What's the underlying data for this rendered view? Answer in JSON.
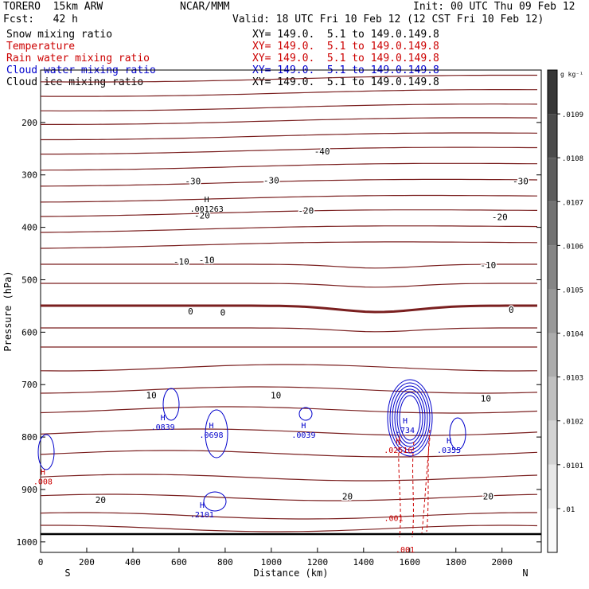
{
  "header": {
    "model": "TORERO  15km ARW",
    "center": "NCAR/MMM",
    "init": "Init: 00 UTC Thu 09 Feb 12",
    "fcst": "Fcst:   42 h",
    "valid": "Valid: 18 UTC Fri 10 Feb 12 (12 CST Fri 10 Feb 12)"
  },
  "legend": [
    {
      "name": "Snow mixing ratio",
      "xy": "XY= 149.0.  5.1 to 149.0.149.8",
      "color": "#000000"
    },
    {
      "name": "Temperature",
      "xy": "XY= 149.0.  5.1 to 149.0.149.8",
      "color": "#cc0000"
    },
    {
      "name": "Rain water mixing ratio",
      "xy": "XY= 149.0.  5.1 to 149.0.149.8",
      "color": "#cc0000"
    },
    {
      "name": "Cloud water mixing ratio",
      "xy": "XY= 149.0.  5.1 to 149.0.149.8",
      "color": "#0000cc"
    },
    {
      "name": "Cloud ice mixing ratio",
      "xy": "XY= 149.0.  5.1 to 149.0.149.8",
      "color": "#000000"
    }
  ],
  "chart_data": {
    "type": "cross-section contour",
    "ylabel": "Pressure (hPa)",
    "xlabel": "Distance (km)",
    "x_ticks": [
      0,
      200,
      400,
      600,
      800,
      1000,
      1200,
      1400,
      1600,
      1800,
      2000
    ],
    "xlim": [
      0,
      2170
    ],
    "y_ticks": [
      200,
      300,
      400,
      500,
      600,
      700,
      800,
      900,
      1000
    ],
    "ylim": [
      100,
      1020
    ],
    "left_end_label": "S",
    "right_end_label": "N",
    "colorbar": {
      "unit": "g kg⁻¹",
      "ticks": [
        ".0109",
        ".0108",
        ".0107",
        ".0106",
        ".0105",
        ".0104",
        ".0103",
        ".0102",
        ".0101",
        ".01"
      ]
    },
    "temperature_labels": [
      {
        "text": "-40",
        "x": 1220,
        "p": 255
      },
      {
        "text": "-30",
        "x": 660,
        "p": 312
      },
      {
        "text": "-30",
        "x": 1000,
        "p": 310
      },
      {
        "text": "-30",
        "x": 2080,
        "p": 312
      },
      {
        "text": "-20",
        "x": 700,
        "p": 377
      },
      {
        "text": "-20",
        "x": 1150,
        "p": 368
      },
      {
        "text": "-20",
        "x": 1990,
        "p": 380
      },
      {
        "text": "-10",
        "x": 610,
        "p": 465
      },
      {
        "text": "-10",
        "x": 720,
        "p": 462
      },
      {
        "text": "-10",
        "x": 1940,
        "p": 472
      },
      {
        "text": "0",
        "x": 650,
        "p": 560
      },
      {
        "text": "0",
        "x": 790,
        "p": 562
      },
      {
        "text": "0",
        "x": 2040,
        "p": 557
      },
      {
        "text": "10",
        "x": 480,
        "p": 720
      },
      {
        "text": "10",
        "x": 1020,
        "p": 720
      },
      {
        "text": "10",
        "x": 1930,
        "p": 726
      },
      {
        "text": "20",
        "x": 260,
        "p": 920
      },
      {
        "text": "20",
        "x": 1330,
        "p": 913
      },
      {
        "text": "20",
        "x": 1940,
        "p": 913
      }
    ],
    "extrema_labels": [
      {
        "h": "H",
        "value": ".001263",
        "x": 720,
        "p": 352,
        "color": "#000000"
      },
      {
        "h": "H",
        "value": ".0839",
        "x": 530,
        "p": 768,
        "color": "#0000cc"
      },
      {
        "h": "H",
        "value": ".0698",
        "x": 740,
        "p": 783,
        "color": "#0000cc"
      },
      {
        "h": "H",
        "value": ".0039",
        "x": 1140,
        "p": 783,
        "color": "#0000cc"
      },
      {
        "h": "H",
        "value": ".734",
        "x": 1580,
        "p": 774,
        "color": "#0000cc"
      },
      {
        "h": "H",
        "value": ".0355",
        "x": 1770,
        "p": 812,
        "color": "#0000cc"
      },
      {
        "h": "H",
        "value": ".2101",
        "x": 700,
        "p": 935,
        "color": "#0000cc"
      },
      {
        "h": "H",
        "value": ".008",
        "x": 10,
        "p": 872,
        "color": "#cc0000"
      },
      {
        "h": "H",
        "value": ".02516",
        "x": 1550,
        "p": 812,
        "color": "#cc0000"
      }
    ],
    "rain_labels": [
      {
        "text": ".001",
        "x": 1530,
        "p": 960
      },
      {
        "text": ".001",
        "x": 1580,
        "p": 1020
      }
    ]
  }
}
